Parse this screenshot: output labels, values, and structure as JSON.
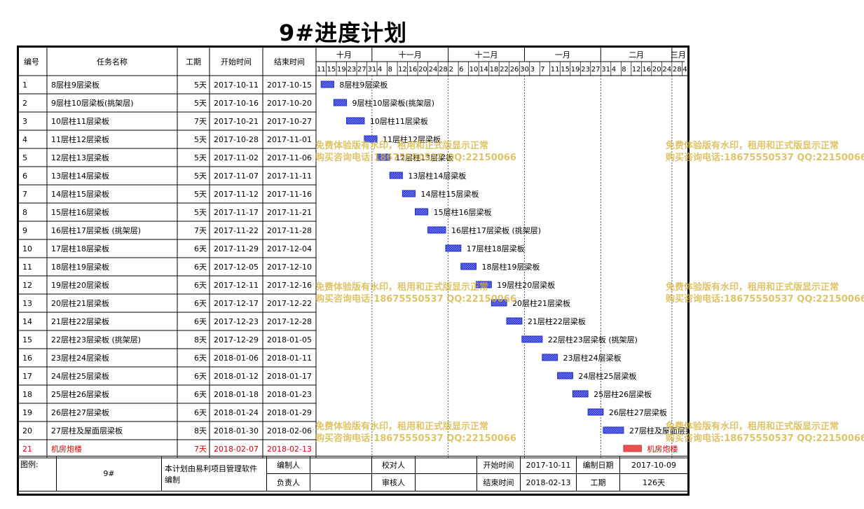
{
  "title": "9#进度计划",
  "columns": {
    "id": "编号",
    "name": "任务名称",
    "duration": "工期",
    "start": "开始时间",
    "end": "结束时间"
  },
  "months": [
    {
      "label": "十月",
      "start": "2017-10-09"
    },
    {
      "label": "十一月",
      "start": "2017-10-31"
    },
    {
      "label": "十二月",
      "start": "2017-11-30"
    },
    {
      "label": "一月",
      "start": "2017-12-30"
    },
    {
      "label": "二月",
      "start": "2018-01-29"
    },
    {
      "label": "三月",
      "start": "2018-02-26"
    }
  ],
  "day_ticks": [
    "11",
    "15",
    "19",
    "23",
    "27",
    "31",
    "4",
    "8",
    "12",
    "16",
    "20",
    "24",
    "28",
    "2",
    "6",
    "10",
    "14",
    "18",
    "22",
    "26",
    "30",
    "3",
    "7",
    "11",
    "15",
    "19",
    "23",
    "27",
    "31",
    "4",
    "8",
    "12",
    "16",
    "20",
    "24",
    "28",
    "4",
    "8"
  ],
  "colors": {
    "bar": "#1e2ad6",
    "bar_fill": "#7f86e6",
    "critical": "#e03030",
    "critical_fill": "#f07070",
    "watermark": "#d6b43c"
  },
  "chart_data": {
    "type": "gantt",
    "title": "9#进度计划",
    "x_range": [
      "2017-10-09",
      "2018-03-03"
    ],
    "tasks": [
      {
        "id": "1",
        "name": "8层柱9层梁板",
        "duration": "5天",
        "start": "2017-10-11",
        "end": "2017-10-15",
        "critical": false
      },
      {
        "id": "2",
        "name": "9层柱10层梁板(挑架层)",
        "duration": "5天",
        "start": "2017-10-16",
        "end": "2017-10-20",
        "critical": false
      },
      {
        "id": "3",
        "name": "10层柱11层梁板",
        "duration": "7天",
        "start": "2017-10-21",
        "end": "2017-10-27",
        "critical": false
      },
      {
        "id": "4",
        "name": "11层柱12层梁板",
        "duration": "5天",
        "start": "2017-10-28",
        "end": "2017-11-01",
        "critical": false
      },
      {
        "id": "5",
        "name": "12层柱13层梁板",
        "duration": "5天",
        "start": "2017-11-02",
        "end": "2017-11-06",
        "critical": false
      },
      {
        "id": "6",
        "name": "13层柱14层梁板",
        "duration": "5天",
        "start": "2017-11-07",
        "end": "2017-11-11",
        "critical": false
      },
      {
        "id": "7",
        "name": "14层柱15层梁板",
        "duration": "5天",
        "start": "2017-11-12",
        "end": "2017-11-16",
        "critical": false
      },
      {
        "id": "8",
        "name": "15层柱16层梁板",
        "duration": "5天",
        "start": "2017-11-17",
        "end": "2017-11-21",
        "critical": false
      },
      {
        "id": "9",
        "name": "16层柱17层梁板 (挑架层)",
        "duration": "7天",
        "start": "2017-11-22",
        "end": "2017-11-28",
        "critical": false
      },
      {
        "id": "10",
        "name": "17层柱18层梁板",
        "duration": "6天",
        "start": "2017-11-29",
        "end": "2017-12-04",
        "critical": false
      },
      {
        "id": "11",
        "name": "18层柱19层梁板",
        "duration": "6天",
        "start": "2017-12-05",
        "end": "2017-12-10",
        "critical": false
      },
      {
        "id": "12",
        "name": "19层柱20层梁板",
        "duration": "6天",
        "start": "2017-12-11",
        "end": "2017-12-16",
        "critical": false
      },
      {
        "id": "13",
        "name": "20层柱21层梁板",
        "duration": "6天",
        "start": "2017-12-17",
        "end": "2017-12-22",
        "critical": false
      },
      {
        "id": "14",
        "name": "21层柱22层梁板",
        "duration": "6天",
        "start": "2017-12-23",
        "end": "2017-12-28",
        "critical": false
      },
      {
        "id": "15",
        "name": "22层柱23层梁板 (挑架层)",
        "duration": "8天",
        "start": "2017-12-29",
        "end": "2018-01-05",
        "critical": false
      },
      {
        "id": "16",
        "name": "23层柱24层梁板",
        "duration": "6天",
        "start": "2018-01-06",
        "end": "2018-01-11",
        "critical": false
      },
      {
        "id": "17",
        "name": "24层柱25层梁板",
        "duration": "6天",
        "start": "2018-01-12",
        "end": "2018-01-17",
        "critical": false
      },
      {
        "id": "18",
        "name": "25层柱26层梁板",
        "duration": "6天",
        "start": "2018-01-18",
        "end": "2018-01-23",
        "critical": false
      },
      {
        "id": "19",
        "name": "26层柱27层梁板",
        "duration": "6天",
        "start": "2018-01-24",
        "end": "2018-01-29",
        "critical": false
      },
      {
        "id": "20",
        "name": "27层柱及屋面层梁板",
        "duration": "8天",
        "start": "2018-01-30",
        "end": "2018-02-06",
        "critical": false
      },
      {
        "id": "21",
        "name": "机房炮楼",
        "duration": "7天",
        "start": "2018-02-07",
        "end": "2018-02-13",
        "critical": true
      }
    ]
  },
  "watermark": {
    "line1": "免费体验版有水印，租用和正式版显示正常",
    "line2": "购买咨询电话:18675550537 QQ:22150066"
  },
  "footer": {
    "legend_label": "图例:",
    "project": "9#",
    "software_note": "本计划由易利项目管理软件编制",
    "compiler_label": "编制人",
    "checker_label": "校对人",
    "start_label": "开始时间",
    "start_value": "2017-10-11",
    "date_label": "编制日期",
    "date_value": "2017-10-09",
    "owner_label": "负责人",
    "reviewer_label": "审核人",
    "end_label": "结束时间",
    "end_value": "2018-02-13",
    "duration_label": "工期",
    "duration_value": "126天"
  }
}
